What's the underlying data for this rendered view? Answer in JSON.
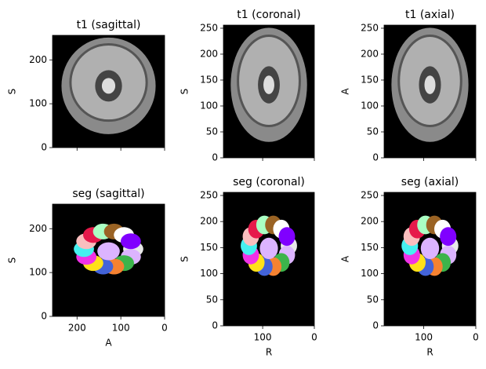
{
  "chart_data": [
    {
      "type": "image",
      "title": "t1 (sagittal)",
      "ylabel": "S",
      "xlim": [
        256,
        0
      ],
      "ylim": [
        0,
        256
      ],
      "xticks": [
        200,
        100,
        0
      ],
      "yticks": [
        0,
        100,
        200
      ],
      "show_xticklabels": false,
      "style": "mri"
    },
    {
      "type": "image",
      "title": "t1 (coronal)",
      "ylabel": "S",
      "xlim": [
        176,
        0
      ],
      "ylim": [
        0,
        256
      ],
      "xticks": [
        100,
        0
      ],
      "yticks": [
        0,
        50,
        100,
        150,
        200,
        250
      ],
      "show_xticklabels": false,
      "style": "mri"
    },
    {
      "type": "image",
      "title": "t1 (axial)",
      "ylabel": "A",
      "xlim": [
        176,
        0
      ],
      "ylim": [
        0,
        256
      ],
      "xticks": [
        100,
        0
      ],
      "yticks": [
        0,
        50,
        100,
        150,
        200,
        250
      ],
      "show_xticklabels": false,
      "style": "mri"
    },
    {
      "type": "image",
      "title": "seg (sagittal)",
      "xlabel": "A",
      "ylabel": "S",
      "xlim": [
        256,
        0
      ],
      "ylim": [
        0,
        256
      ],
      "xticks": [
        200,
        100,
        0
      ],
      "yticks": [
        0,
        100,
        200
      ],
      "show_xticklabels": true,
      "style": "seg"
    },
    {
      "type": "image",
      "title": "seg (coronal)",
      "xlabel": "R",
      "ylabel": "S",
      "xlim": [
        176,
        0
      ],
      "ylim": [
        0,
        256
      ],
      "xticks": [
        100,
        0
      ],
      "yticks": [
        0,
        50,
        100,
        150,
        200,
        250
      ],
      "show_xticklabels": true,
      "style": "seg"
    },
    {
      "type": "image",
      "title": "seg (axial)",
      "xlabel": "R",
      "ylabel": "A",
      "xlim": [
        176,
        0
      ],
      "ylim": [
        0,
        256
      ],
      "xticks": [
        100,
        0
      ],
      "yticks": [
        0,
        50,
        100,
        150,
        200,
        250
      ],
      "show_xticklabels": true,
      "style": "seg"
    }
  ]
}
